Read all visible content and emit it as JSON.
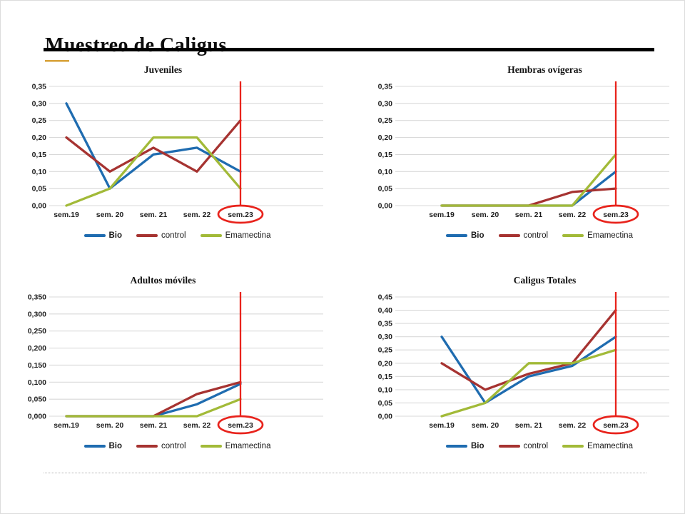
{
  "slide": {
    "title": "Muestreo de Caligus"
  },
  "colors": {
    "bio": "#1F6CB0",
    "control": "#A63331",
    "emamectina": "#A2BA38",
    "annotation_red": "#E8231C",
    "gridline": "#D9D9D9",
    "title_rule": "#000000",
    "accent_tick": "#D9A33C"
  },
  "chart_data": [
    {
      "type": "line",
      "title": "Juveniles",
      "categories": [
        "sem.19",
        "sem. 20",
        "sem. 21",
        "sem. 22",
        "sem.23"
      ],
      "series": [
        {
          "name": "Bio",
          "color": "#1F6CB0",
          "values": [
            0.3,
            0.05,
            0.15,
            0.17,
            0.1
          ]
        },
        {
          "name": "control",
          "color": "#A63331",
          "values": [
            0.2,
            0.1,
            0.17,
            0.1,
            0.25
          ]
        },
        {
          "name": "Emamectina",
          "color": "#A2BA38",
          "values": [
            0.0,
            0.05,
            0.2,
            0.2,
            0.05
          ]
        }
      ],
      "ylim": [
        0,
        0.35
      ],
      "ytick": 0.05,
      "decimals": 2,
      "grid": true,
      "legend_position": "bottom",
      "annotation": {
        "vline_category": "sem.23",
        "circled_label": "sem.23"
      }
    },
    {
      "type": "line",
      "title": "Hembras ovígeras",
      "categories": [
        "sem.19",
        "sem. 20",
        "sem. 21",
        "sem. 22",
        "sem.23"
      ],
      "series": [
        {
          "name": "Bio",
          "color": "#1F6CB0",
          "values": [
            0.0,
            0.0,
            0.0,
            0.0,
            0.1
          ]
        },
        {
          "name": "control",
          "color": "#A63331",
          "values": [
            0.0,
            0.0,
            0.0,
            0.04,
            0.05
          ]
        },
        {
          "name": "Emamectina",
          "color": "#A2BA38",
          "values": [
            0.0,
            0.0,
            0.0,
            0.0,
            0.15
          ]
        }
      ],
      "ylim": [
        0,
        0.35
      ],
      "ytick": 0.05,
      "decimals": 2,
      "grid": true,
      "legend_position": "bottom",
      "annotation": {
        "vline_category": "sem.23",
        "circled_label": "sem.23"
      }
    },
    {
      "type": "line",
      "title": "Adultos móviles",
      "categories": [
        "sem.19",
        "sem. 20",
        "sem. 21",
        "sem. 22",
        "sem.23"
      ],
      "series": [
        {
          "name": "Bio",
          "color": "#1F6CB0",
          "values": [
            0.0,
            0.0,
            0.0,
            0.035,
            0.095
          ]
        },
        {
          "name": "control",
          "color": "#A63331",
          "values": [
            0.0,
            0.0,
            0.0,
            0.065,
            0.1
          ]
        },
        {
          "name": "Emamectina",
          "color": "#A2BA38",
          "values": [
            0.0,
            0.0,
            0.0,
            0.0,
            0.05
          ]
        }
      ],
      "ylim": [
        0,
        0.35
      ],
      "ytick": 0.05,
      "decimals": 3,
      "grid": true,
      "legend_position": "bottom",
      "annotation": {
        "vline_category": "sem.23",
        "circled_label": "sem.23"
      }
    },
    {
      "type": "line",
      "title": "Caligus Totales",
      "categories": [
        "sem.19",
        "sem. 20",
        "sem. 21",
        "sem. 22",
        "sem.23"
      ],
      "series": [
        {
          "name": "Bio",
          "color": "#1F6CB0",
          "values": [
            0.3,
            0.05,
            0.15,
            0.19,
            0.3
          ]
        },
        {
          "name": "control",
          "color": "#A63331",
          "values": [
            0.2,
            0.1,
            0.16,
            0.2,
            0.4
          ]
        },
        {
          "name": "Emamectina",
          "color": "#A2BA38",
          "values": [
            0.0,
            0.05,
            0.2,
            0.2,
            0.25
          ]
        }
      ],
      "ylim": [
        0,
        0.45
      ],
      "ytick": 0.05,
      "decimals": 2,
      "grid": true,
      "legend_position": "bottom",
      "annotation": {
        "vline_category": "sem.23",
        "circled_label": "sem.23"
      }
    }
  ]
}
